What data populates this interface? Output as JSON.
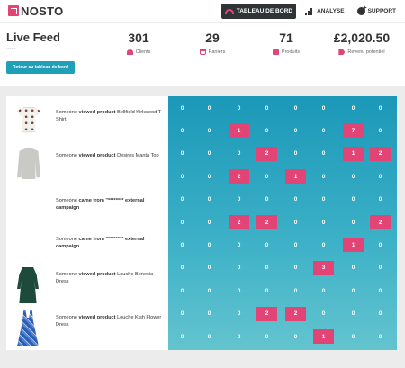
{
  "app": {
    "brand": "NOSTO",
    "brand_color": "#e24475",
    "accent_color": "#1fa0b8"
  },
  "nav": [
    {
      "label": "TABLEAU DE BORD",
      "icon": "dashboard-gauge-icon",
      "active": true
    },
    {
      "label": "ANALYSE",
      "icon": "bar-chart-icon",
      "active": false
    },
    {
      "label": "SUPPORT",
      "icon": "support-icon",
      "active": false
    }
  ],
  "header": {
    "title": "Live Feed",
    "subtitle": "••••••",
    "back_button": "Retour au tableau de bord"
  },
  "stats": [
    {
      "value": "301",
      "label": "Clients",
      "icon": "users-icon"
    },
    {
      "value": "29",
      "label": "Paniers",
      "icon": "cart-icon"
    },
    {
      "value": "71",
      "label": "Produits",
      "icon": "box-icon"
    },
    {
      "value": "£2,020.50",
      "label": "Revenu potentiel",
      "icon": "tag-icon"
    }
  ],
  "feed": [
    {
      "prefix": "Someone ",
      "action": "viewed product",
      "suffix": " Bellfield Kirkwood T-Shirt",
      "thumb": "tshirt"
    },
    {
      "prefix": "Someone ",
      "action": "viewed product",
      "suffix": " Desires Manta Top",
      "thumb": "sweater"
    },
    {
      "prefix": "Someone ",
      "action": "came from",
      "suffix": " \"******** external campaign",
      "thumb": ""
    },
    {
      "prefix": "Someone ",
      "action": "came from",
      "suffix": " \"******** external campaign",
      "thumb": ""
    },
    {
      "prefix": "Someone ",
      "action": "viewed product",
      "suffix": " Louche Benecia Dress",
      "thumb": "dress-green"
    },
    {
      "prefix": "Someone ",
      "action": "viewed product",
      "suffix": " Louche Kish Flower Dress",
      "thumb": "dress-blue"
    }
  ],
  "heatmap": {
    "hot_color": "#e24475",
    "rows": [
      [
        0,
        0,
        0,
        0,
        0,
        0,
        0,
        0
      ],
      [
        0,
        0,
        1,
        0,
        0,
        0,
        7,
        0
      ],
      [
        0,
        0,
        0,
        2,
        0,
        0,
        1,
        2
      ],
      [
        0,
        0,
        2,
        0,
        1,
        0,
        0,
        0
      ],
      [
        0,
        0,
        0,
        0,
        0,
        0,
        0,
        0
      ],
      [
        0,
        0,
        2,
        2,
        0,
        0,
        0,
        2
      ],
      [
        0,
        0,
        0,
        0,
        0,
        0,
        1,
        0
      ],
      [
        0,
        0,
        0,
        0,
        0,
        3,
        0,
        0
      ],
      [
        0,
        0,
        0,
        0,
        0,
        0,
        0,
        0
      ],
      [
        0,
        0,
        0,
        2,
        2,
        0,
        0,
        0
      ],
      [
        0,
        0,
        0,
        0,
        0,
        1,
        0,
        0
      ]
    ]
  }
}
